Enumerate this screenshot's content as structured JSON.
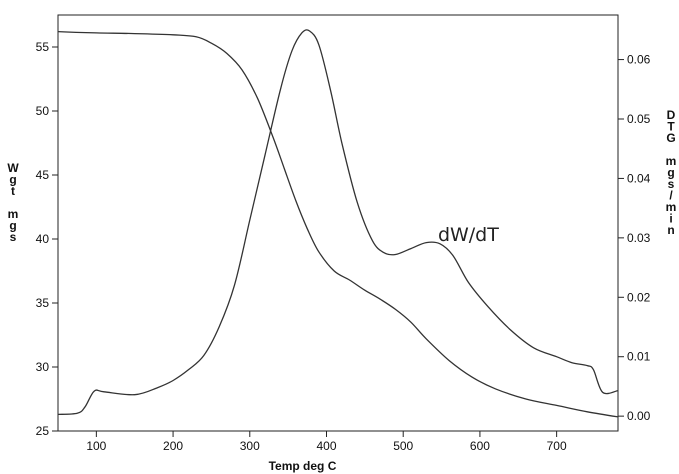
{
  "chart_data": {
    "type": "line",
    "title": "",
    "xlabel": "Temp deg C",
    "ylabel_left_letters": [
      "W",
      "g",
      "t",
      "",
      "m",
      "g",
      "s"
    ],
    "ylabel_right_letters": [
      "D",
      "T",
      "G",
      "",
      "m",
      "g",
      "s",
      "/",
      "m",
      "i",
      "n"
    ],
    "x_ticks": [
      100,
      200,
      300,
      400,
      500,
      600,
      700
    ],
    "y_left_ticks": [
      25,
      30,
      35,
      40,
      45,
      50,
      55
    ],
    "y_right_ticks": [
      "0.00",
      "0.01",
      "0.02",
      "0.03",
      "0.04",
      "0.05",
      "0.06"
    ],
    "xlim": [
      50,
      780
    ],
    "ylim_left": [
      25,
      57.5
    ],
    "ylim_right": [
      -0.0025,
      0.0675
    ],
    "grid": false,
    "annotations": [
      {
        "text": "dW/dT",
        "x": 585,
        "y": 0.0295,
        "axis": "right"
      }
    ],
    "series": [
      {
        "axis": "left",
        "x": [
          50,
          100,
          150,
          200,
          230,
          250,
          270,
          290,
          310,
          330,
          345,
          360,
          375,
          390,
          410,
          430,
          450,
          470,
          490,
          510,
          530,
          560,
          590,
          620,
          660,
          700,
          740,
          780
        ],
        "y": [
          56.2,
          56.1,
          56.05,
          55.95,
          55.8,
          55.3,
          54.5,
          53.2,
          51.0,
          48.0,
          45.5,
          43.0,
          40.8,
          39.0,
          37.5,
          36.8,
          36.0,
          35.3,
          34.5,
          33.5,
          32.2,
          30.5,
          29.2,
          28.3,
          27.5,
          27.0,
          26.5,
          26.1
        ]
      },
      {
        "axis": "right",
        "x": [
          50,
          75,
          85,
          97,
          110,
          150,
          180,
          200,
          220,
          240,
          260,
          280,
          300,
          320,
          340,
          355,
          368,
          378,
          390,
          405,
          420,
          440,
          460,
          475,
          490,
          510,
          530,
          548,
          565,
          585,
          610,
          640,
          670,
          700,
          720,
          740,
          748,
          760,
          780
        ],
        "y": [
          0.0003,
          0.0005,
          0.0015,
          0.0042,
          0.0041,
          0.0036,
          0.0048,
          0.006,
          0.0078,
          0.0102,
          0.015,
          0.022,
          0.033,
          0.044,
          0.055,
          0.0615,
          0.0645,
          0.0648,
          0.0625,
          0.055,
          0.046,
          0.036,
          0.0295,
          0.0275,
          0.0272,
          0.0282,
          0.0292,
          0.029,
          0.027,
          0.0225,
          0.0185,
          0.0145,
          0.0115,
          0.01,
          0.009,
          0.0085,
          0.0078,
          0.004,
          0.0043
        ]
      }
    ]
  }
}
